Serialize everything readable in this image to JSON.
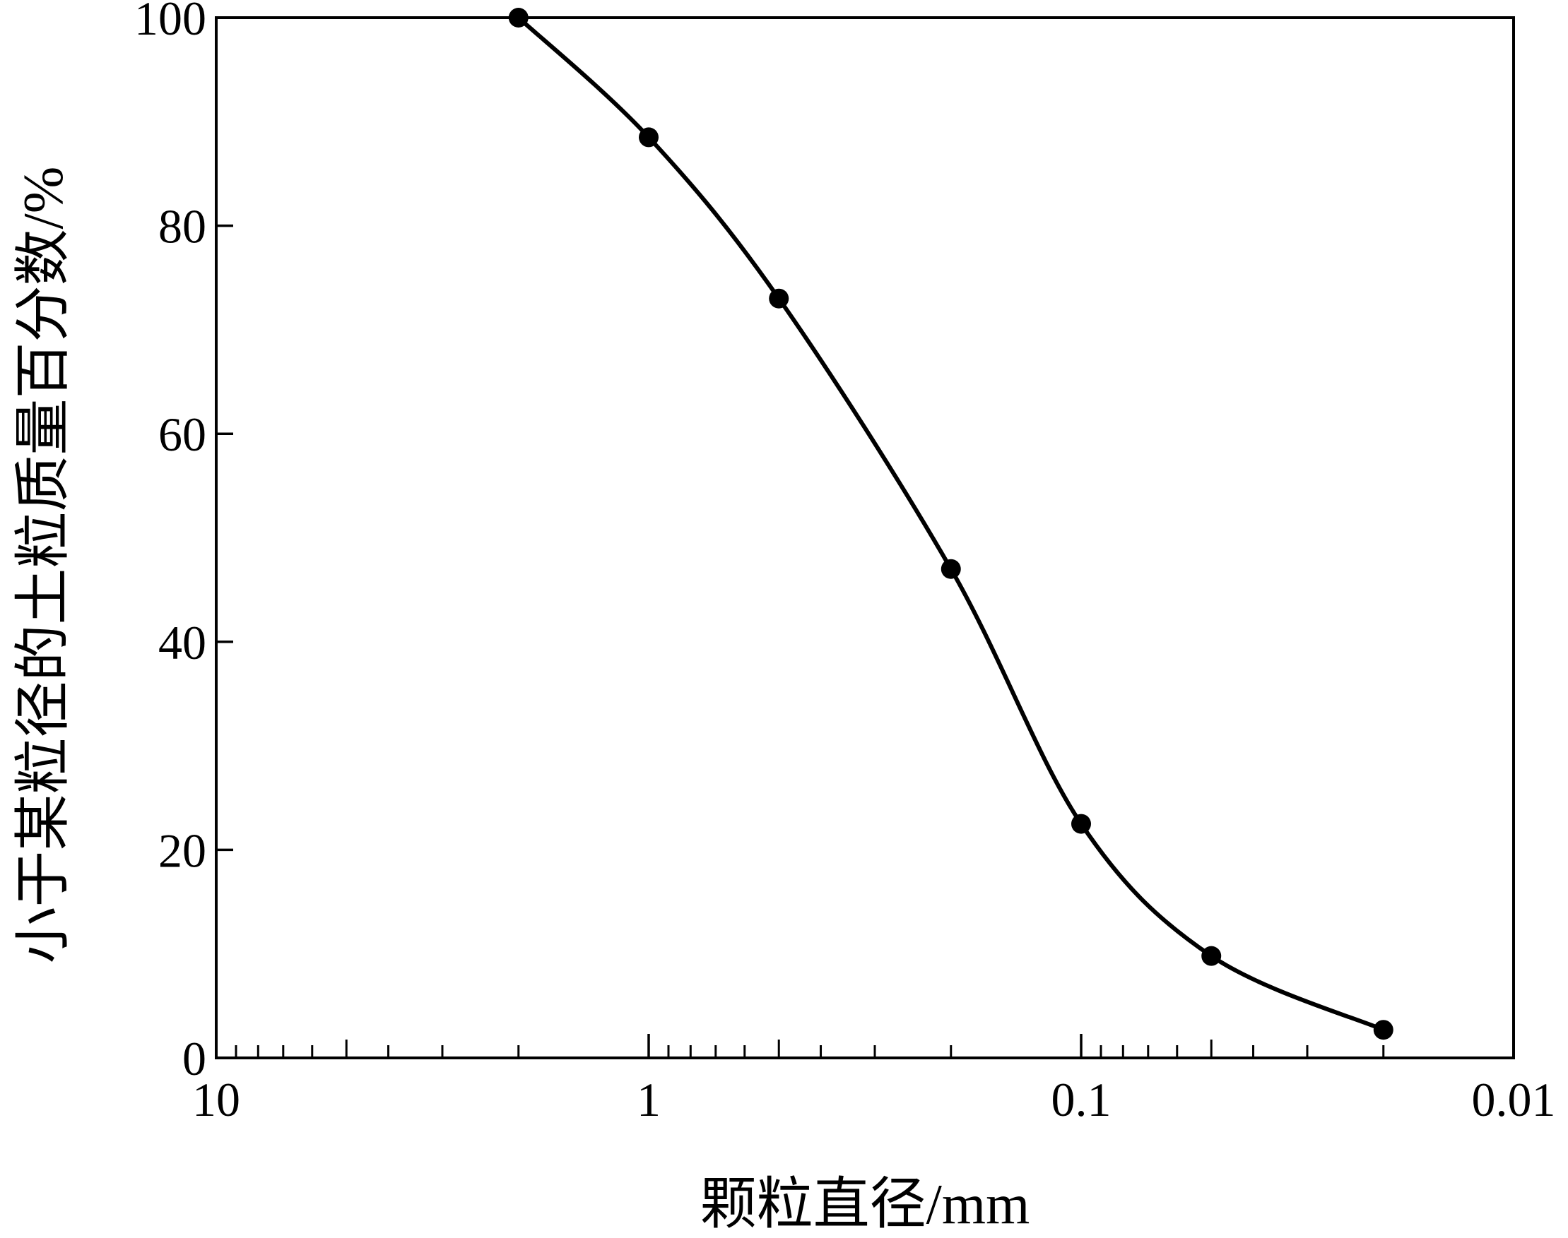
{
  "chart_data": {
    "type": "line",
    "title": "",
    "xlabel": "颗粒直径/mm",
    "ylabel": "小于某粒径的土粒质量百分数/%",
    "x_scale": "log",
    "x_reversed": true,
    "xlim": [
      10,
      0.01
    ],
    "ylim": [
      0,
      100
    ],
    "grid": false,
    "x_tick_labels": [
      "10",
      "1",
      "0.1",
      "0.01"
    ],
    "y_tick_labels": [
      "0",
      "20",
      "40",
      "60",
      "80",
      "100"
    ],
    "x_ticks": [
      10,
      1,
      0.1,
      0.01
    ],
    "y_ticks": [
      0,
      20,
      40,
      60,
      80,
      100
    ],
    "series": [
      {
        "x": [
          2,
          1,
          0.5,
          0.2,
          0.1,
          0.05,
          0.02
        ],
        "y": [
          100,
          88.5,
          73,
          47,
          22.5,
          9.8,
          2.7
        ]
      }
    ],
    "line_color": "#000000"
  }
}
